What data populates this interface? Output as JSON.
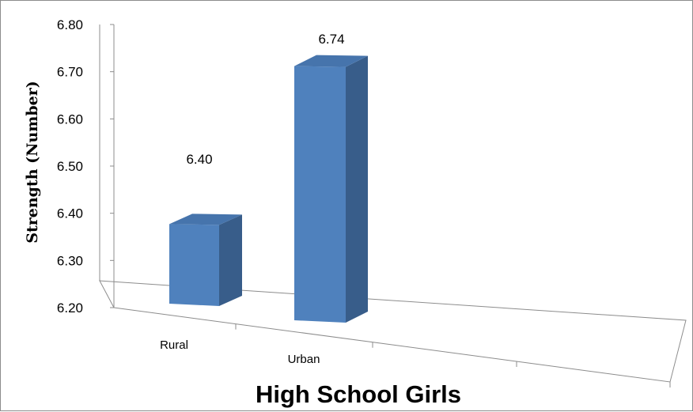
{
  "chart_data": {
    "type": "bar",
    "categories": [
      "Rural",
      "Urban"
    ],
    "values": [
      6.4,
      6.74
    ],
    "data_labels": [
      "6.40",
      "6.74"
    ],
    "xlabel": "High School Girls",
    "ylabel": "Strength (Number)",
    "ylim": [
      6.2,
      6.8
    ],
    "yticks": [
      "6.80",
      "6.70",
      "6.60",
      "6.50",
      "6.40",
      "6.30",
      "6.20"
    ],
    "grid": false,
    "legend": "none",
    "style": "3d-column",
    "colors": {
      "bar_front": "#4f81bd",
      "bar_side": "#385d8a",
      "bar_top": "#4674ac",
      "axis": "#8c8c8c"
    }
  }
}
